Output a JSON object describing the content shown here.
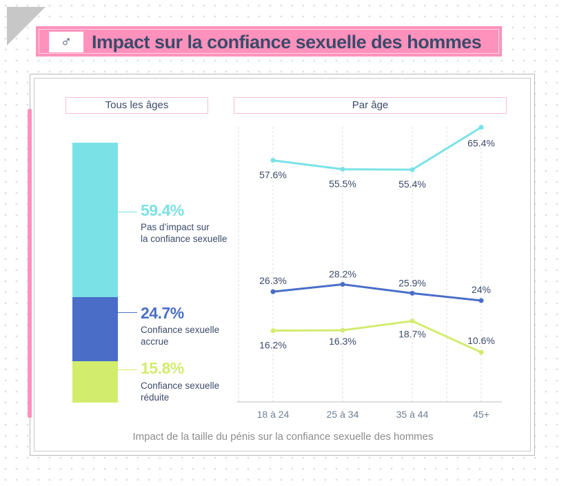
{
  "header": {
    "icon": "male-symbol-icon",
    "icon_glyph": "♂",
    "title": "Impact sur la confiance sexuelle des hommes"
  },
  "sections": {
    "all_ages": "Tous les âges",
    "by_age": "Par âge"
  },
  "legend": [
    {
      "pct": "59.4%",
      "label": "Pas d’impact sur la confiance sexuelle",
      "label_lines": [
        "Pas d’impact sur",
        "la confiance sexuelle"
      ],
      "color": "#7ae2e6"
    },
    {
      "pct": "24.7%",
      "label": "Confiance sexuelle accrue",
      "label_lines": [
        "Confiance sexuelle",
        "accrue"
      ],
      "color": "#4a6ec8"
    },
    {
      "pct": "15.8%",
      "label": "Confiance sexuelle réduite",
      "label_lines": [
        "Confiance sexuelle",
        "réduite"
      ],
      "color": "#d2ec6e"
    }
  ],
  "caption": "Impact de la taille du pénis sur la confiance sexuelle des hommes",
  "chart_data": [
    {
      "type": "bar",
      "title": "Tous les âges",
      "stacked": true,
      "categories": [
        "Tous les âges"
      ],
      "series": [
        {
          "name": "Pas d’impact sur la confiance sexuelle",
          "values": [
            59.4
          ],
          "color": "#7ae2e6"
        },
        {
          "name": "Confiance sexuelle accrue",
          "values": [
            24.7
          ],
          "color": "#4a6ec8"
        },
        {
          "name": "Confiance sexuelle réduite",
          "values": [
            15.8
          ],
          "color": "#d2ec6e"
        }
      ],
      "ylim": [
        0,
        100
      ]
    },
    {
      "type": "line",
      "title": "Par âge",
      "categories": [
        "18 à 24",
        "25 à 34",
        "35 à 44",
        "45+"
      ],
      "series": [
        {
          "name": "Pas d’impact sur la confiance sexuelle",
          "values": [
            57.6,
            55.5,
            55.4,
            65.4
          ],
          "labels": [
            "57.6%",
            "55.5%",
            "55.4%",
            "65.4%"
          ],
          "color": "#7ae2e6"
        },
        {
          "name": "Confiance sexuelle accrue",
          "values": [
            26.3,
            28.2,
            25.9,
            24.0
          ],
          "labels": [
            "26.3%",
            "28.2%",
            "25.9%",
            "24%"
          ],
          "color": "#4a6ec8"
        },
        {
          "name": "Confiance sexuelle réduite",
          "values": [
            16.2,
            16.3,
            18.7,
            10.6
          ],
          "labels": [
            "16.2%",
            "16.3%",
            "18.7%",
            "10.6%"
          ],
          "color": "#d2ec6e"
        }
      ],
      "grid": true,
      "ylim": [
        0,
        70
      ]
    }
  ]
}
